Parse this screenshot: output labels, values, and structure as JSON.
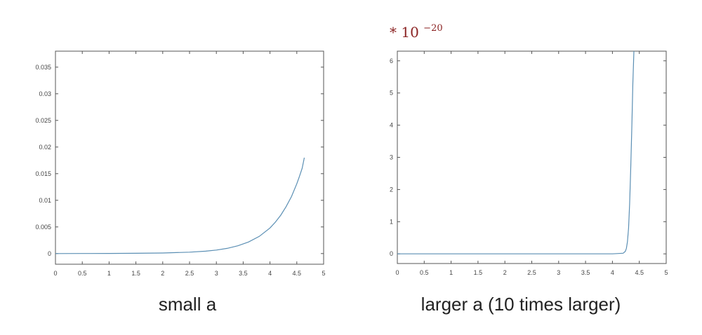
{
  "colors": {
    "line": "#5b8fb4",
    "axes": "#555555",
    "multiplier": "#8b2323"
  },
  "chart_data": [
    {
      "type": "line",
      "title": "",
      "caption": "small a",
      "xlabel": "",
      "ylabel": "",
      "xlim": [
        0,
        5
      ],
      "ylim": [
        -0.002,
        0.038
      ],
      "x_ticks": [
        0,
        0.5,
        1,
        1.5,
        2,
        2.5,
        3,
        3.5,
        4,
        4.5,
        5
      ],
      "x_tick_labels": [
        "0",
        "0.5",
        "1",
        "1.5",
        "2",
        "2.5",
        "3",
        "3.5",
        "4",
        "4.5",
        "5"
      ],
      "y_ticks": [
        0,
        0.005,
        0.01,
        0.015,
        0.02,
        0.025,
        0.03,
        0.035
      ],
      "y_tick_labels": [
        "0",
        "0.005",
        "0.01",
        "0.015",
        "0.02",
        "0.025",
        "0.03",
        "0.035"
      ],
      "grid": false,
      "series": [
        {
          "x": [
            0,
            0.5,
            1,
            1.5,
            2,
            2.5,
            2.8,
            3,
            3.2,
            3.4,
            3.6,
            3.8,
            4,
            4.1,
            4.2,
            4.3,
            4.4,
            4.5,
            4.55,
            4.6,
            4.64
          ],
          "values": [
            0,
            1e-05,
            2e-05,
            5e-05,
            0.00011,
            0.00026,
            0.00045,
            0.00066,
            0.00098,
            0.00146,
            0.00217,
            0.00322,
            0.0048,
            0.0059,
            0.0072,
            0.0088,
            0.0107,
            0.0131,
            0.0145,
            0.016,
            0.018
          ]
        }
      ]
    },
    {
      "type": "line",
      "title": "",
      "caption": "larger a  (10 times larger)",
      "multiplier": {
        "prefix": "* 10",
        "exponent": "−20"
      },
      "xlabel": "",
      "ylabel": "",
      "xlim": [
        0,
        5
      ],
      "ylim": [
        -0.3,
        6.3
      ],
      "x_ticks": [
        0,
        0.5,
        1,
        1.5,
        2,
        2.5,
        3,
        3.5,
        4,
        4.5,
        5
      ],
      "x_tick_labels": [
        "0",
        "0.5",
        "1",
        "1.5",
        "2",
        "2.5",
        "3",
        "3.5",
        "4",
        "4.5",
        "5"
      ],
      "y_ticks": [
        0,
        1,
        2,
        3,
        4,
        5,
        6
      ],
      "y_tick_labels": [
        "0",
        "1",
        "2",
        "3",
        "4",
        "5",
        "6"
      ],
      "grid": false,
      "series": [
        {
          "x": [
            0,
            1,
            2,
            3,
            4,
            4.2,
            4.24,
            4.26,
            4.28,
            4.3,
            4.32,
            4.34,
            4.36,
            4.38,
            4.4
          ],
          "values": [
            0,
            0,
            0,
            0,
            0,
            0.02,
            0.08,
            0.17,
            0.38,
            0.8,
            1.55,
            2.6,
            3.9,
            5.3,
            6.3
          ]
        }
      ]
    }
  ]
}
